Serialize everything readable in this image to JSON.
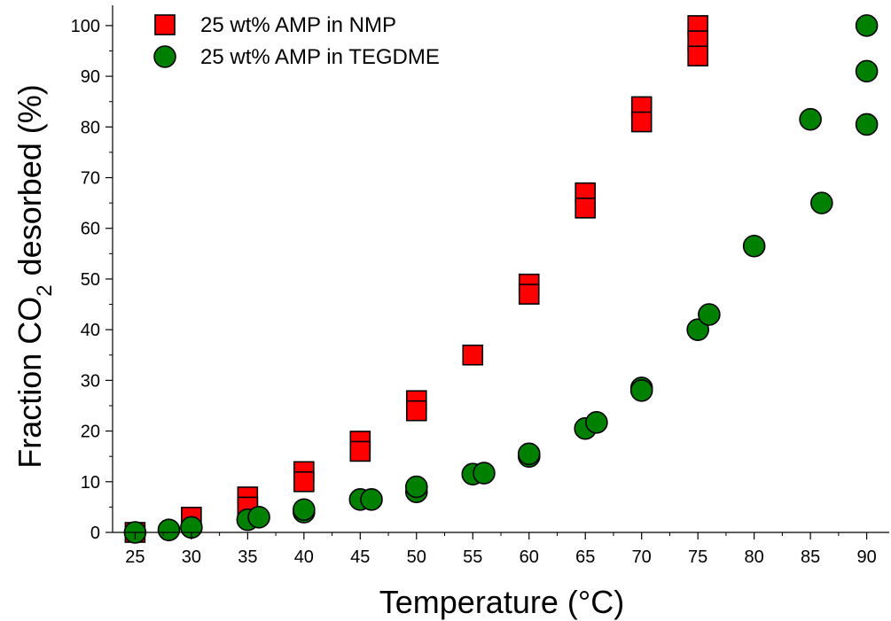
{
  "chart_data": {
    "type": "scatter",
    "xlabel": "Temperature (°C)",
    "ylabel_parts": [
      "Fraction CO",
      "2",
      " desorbed (%)"
    ],
    "xlim": [
      23,
      92
    ],
    "ylim": [
      0,
      104
    ],
    "xticks": [
      25,
      30,
      35,
      40,
      45,
      50,
      55,
      60,
      65,
      70,
      75,
      80,
      85,
      90
    ],
    "yticks": [
      0,
      10,
      20,
      30,
      40,
      50,
      60,
      70,
      80,
      90,
      100
    ],
    "grid": false,
    "legend_position": "top-left",
    "series": [
      {
        "name": "25 wt% AMP in NMP",
        "marker": "square",
        "color": "#ff0000",
        "points": [
          [
            25,
            0
          ],
          [
            30,
            3
          ],
          [
            35,
            7
          ],
          [
            35,
            5
          ],
          [
            40,
            12
          ],
          [
            40,
            10
          ],
          [
            45,
            18
          ],
          [
            45,
            16
          ],
          [
            50,
            26
          ],
          [
            50,
            24
          ],
          [
            55,
            35
          ],
          [
            60,
            49
          ],
          [
            60,
            47
          ],
          [
            65,
            67
          ],
          [
            65,
            64
          ],
          [
            70,
            84
          ],
          [
            70,
            81
          ],
          [
            75,
            100
          ],
          [
            75,
            97
          ],
          [
            75,
            94
          ]
        ]
      },
      {
        "name": "25 wt% AMP in TEGDME",
        "marker": "circle",
        "color": "#008000",
        "points": [
          [
            25,
            0
          ],
          [
            28,
            0.5
          ],
          [
            30,
            1
          ],
          [
            35,
            2.5
          ],
          [
            36,
            3
          ],
          [
            40,
            4
          ],
          [
            40,
            4.5
          ],
          [
            45,
            6.5
          ],
          [
            46,
            6.5
          ],
          [
            50,
            8
          ],
          [
            50,
            9
          ],
          [
            55,
            11.5
          ],
          [
            56,
            11.7
          ],
          [
            60,
            15
          ],
          [
            60,
            15.5
          ],
          [
            65,
            20.5
          ],
          [
            66,
            21.7
          ],
          [
            70,
            28.5
          ],
          [
            70,
            28
          ],
          [
            75,
            40
          ],
          [
            76,
            43
          ],
          [
            80,
            56.5
          ],
          [
            85,
            81.5
          ],
          [
            86,
            65
          ],
          [
            90,
            100
          ],
          [
            90,
            91
          ],
          [
            90,
            80.5
          ]
        ]
      }
    ]
  }
}
